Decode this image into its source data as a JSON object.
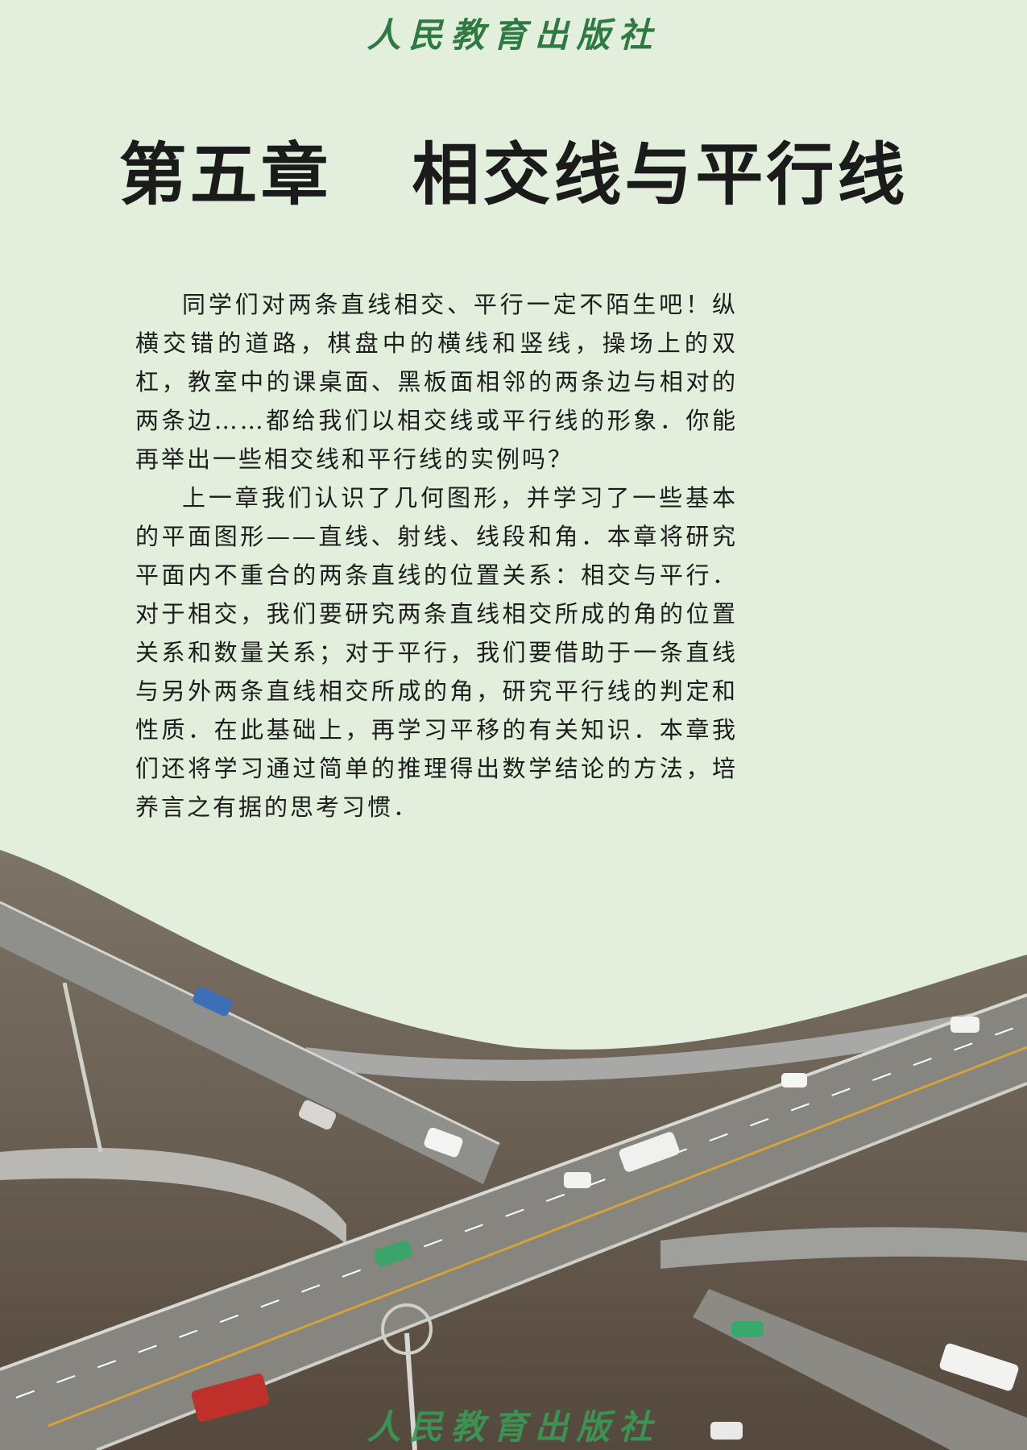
{
  "publisher": {
    "top": "人民教育出版社",
    "bottom": "人民教育出版社"
  },
  "chapter": {
    "title": "第五章   相交线与平行线"
  },
  "paragraphs": [
    "同学们对两条直线相交、平行一定不陌生吧！纵横交错的道路，棋盘中的横线和竖线，操场上的双杠，教室中的课桌面、黑板面相邻的两条边与相对的两条边……都给我们以相交线或平行线的形象．你能再举出一些相交线和平行线的实例吗？",
    "上一章我们认识了几何图形，并学习了一些基本的平面图形——直线、射线、线段和角．本章将研究平面内不重合的两条直线的位置关系：相交与平行．对于相交，我们要研究两条直线相交所成的角的位置关系和数量关系；对于平行，我们要借助于一条直线与另外两条直线相交所成的角，研究平行线的判定和性质．在此基础上，再学习平移的有关知识．本章我们还将学习通过简单的推理得出数学结论的方法，培养言之有据的思考习惯．"
  ],
  "colors": {
    "page_bg": "#e2efdc",
    "publisher_green": "#2f7a43"
  }
}
